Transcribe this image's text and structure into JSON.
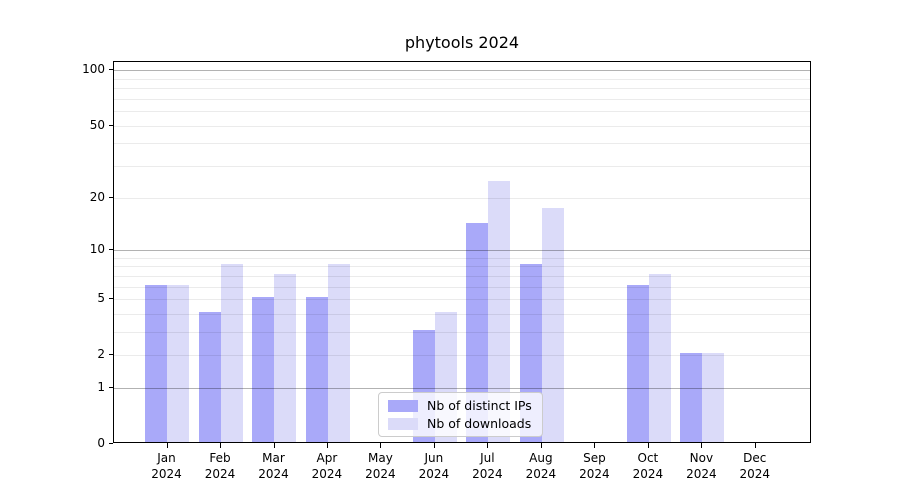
{
  "title": "phytools 2024",
  "chart_data": {
    "type": "bar",
    "title": "phytools 2024",
    "categories": [
      "Jan",
      "Feb",
      "Mar",
      "Apr",
      "May",
      "Jun",
      "Jul",
      "Aug",
      "Sep",
      "Oct",
      "Nov",
      "Dec"
    ],
    "x_year_label": "2024",
    "series": [
      {
        "name": "Nb of distinct IPs",
        "color": "#a9a9f9",
        "values": [
          6,
          4,
          5,
          5,
          0,
          3,
          14,
          8,
          0,
          6,
          2,
          0
        ]
      },
      {
        "name": "Nb of downloads",
        "color": "#dbdbf9",
        "values": [
          6,
          8,
          7,
          8,
          0,
          4,
          24,
          17,
          0,
          7,
          2,
          0
        ]
      }
    ],
    "xlabel": "",
    "ylabel": "",
    "y_axis": {
      "scale": "log10(1+v)",
      "tick_labels": [
        "100",
        "50",
        "20",
        "10",
        "5",
        "2",
        "1",
        "0"
      ],
      "tick_values": [
        100,
        50,
        20,
        10,
        5,
        2,
        1,
        0
      ],
      "major_gridline_values": [
        100,
        10,
        1
      ],
      "minor_gridline_values": [
        90,
        80,
        70,
        60,
        40,
        30,
        9,
        8,
        7,
        6,
        4,
        3
      ],
      "range": [
        0,
        112
      ]
    },
    "grid": "horizontal",
    "legend": {
      "position": "bottom-center-inside",
      "entries": [
        "Nb of distinct IPs",
        "Nb of downloads"
      ]
    }
  }
}
